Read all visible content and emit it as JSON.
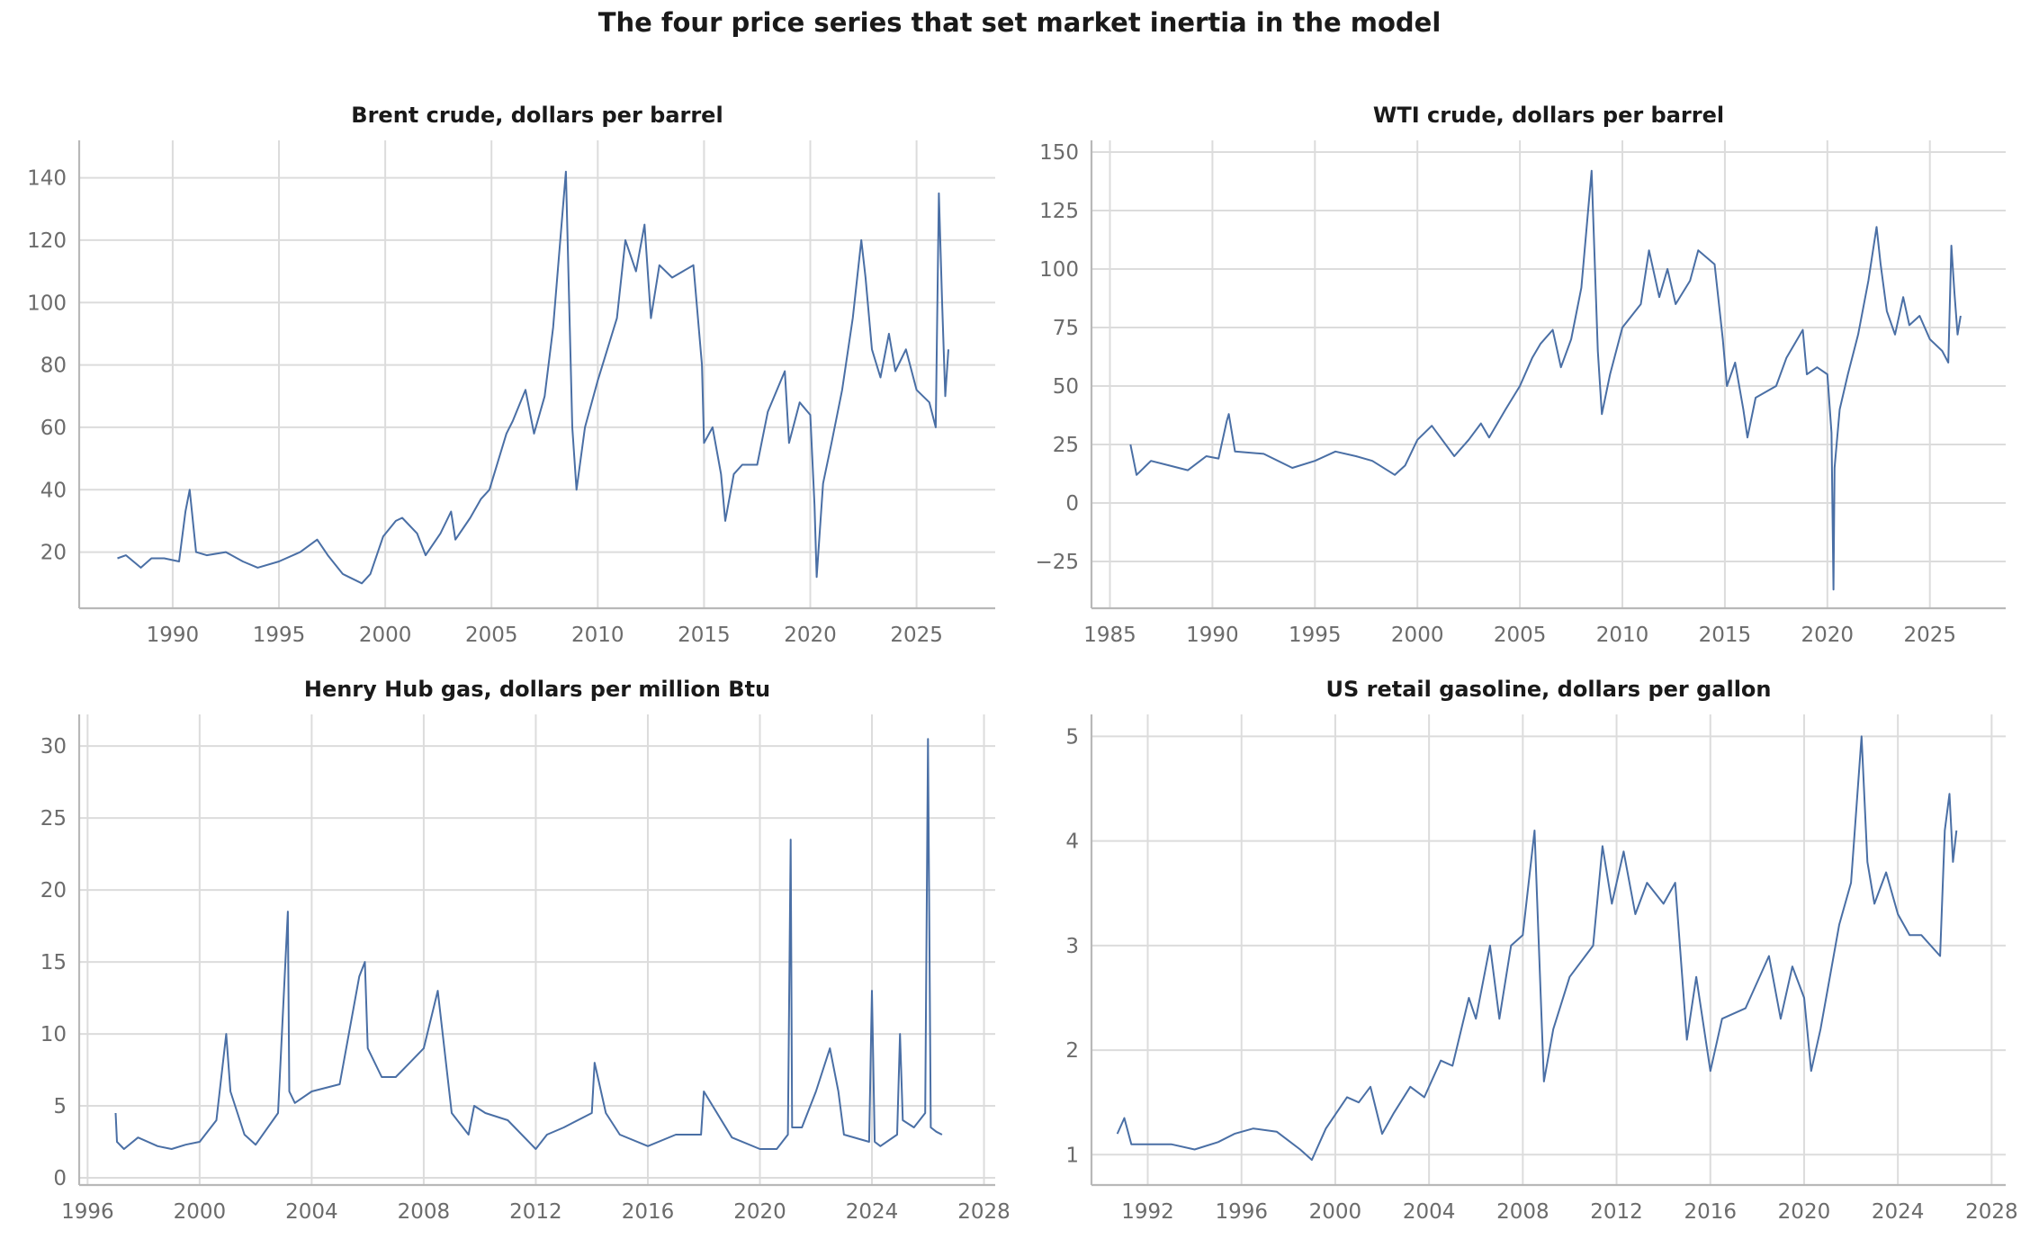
{
  "figure": {
    "suptitle": "The four price series that set market inertia in the model",
    "series_color": "#4a6fa5",
    "grid_color": "#dcdcdc"
  },
  "chart_data": [
    {
      "id": "brent",
      "type": "line",
      "title": "Brent crude, dollars per barrel",
      "xlabel": "",
      "ylabel": "",
      "xlim": [
        1985.6,
        2028.7
      ],
      "ylim": [
        2,
        152
      ],
      "xticks": [
        1990,
        1995,
        2000,
        2005,
        2010,
        2015,
        2020,
        2025
      ],
      "yticks": [
        20,
        40,
        60,
        80,
        100,
        120,
        140
      ],
      "grid": true,
      "x": [
        1987.4,
        1987.8,
        1988.5,
        1989.0,
        1989.6,
        1990.3,
        1990.6,
        1990.8,
        1991.1,
        1991.6,
        1992.5,
        1993.3,
        1994.0,
        1995.0,
        1996.0,
        1996.8,
        1997.3,
        1998.0,
        1998.9,
        1999.3,
        1999.9,
        2000.5,
        2000.8,
        2001.5,
        2001.9,
        2002.6,
        2003.1,
        2003.3,
        2004.0,
        2004.5,
        2004.9,
        2005.7,
        2006.0,
        2006.6,
        2007.0,
        2007.5,
        2007.9,
        2008.5,
        2008.8,
        2009.0,
        2009.4,
        2010.0,
        2010.9,
        2011.3,
        2011.8,
        2012.2,
        2012.5,
        2012.9,
        2013.5,
        2014.0,
        2014.5,
        2014.9,
        2015.0,
        2015.4,
        2015.8,
        2016.0,
        2016.4,
        2016.8,
        2017.5,
        2018.0,
        2018.8,
        2019.0,
        2019.5,
        2020.0,
        2020.2,
        2020.3,
        2020.6,
        2021.0,
        2021.5,
        2022.0,
        2022.4,
        2022.6,
        2022.9,
        2023.3,
        2023.7,
        2024.0,
        2024.5,
        2025.0,
        2025.6,
        2025.9,
        2026.05,
        2026.2,
        2026.35,
        2026.5
      ],
      "values": [
        18,
        19,
        15,
        18,
        18,
        17,
        33,
        40,
        20,
        19,
        20,
        17,
        15,
        17,
        20,
        24,
        19,
        13,
        10,
        13,
        25,
        30,
        31,
        26,
        19,
        26,
        33,
        24,
        31,
        37,
        40,
        58,
        62,
        72,
        58,
        70,
        92,
        142,
        60,
        40,
        60,
        75,
        95,
        120,
        110,
        125,
        95,
        112,
        108,
        110,
        112,
        80,
        55,
        60,
        45,
        30,
        45,
        48,
        48,
        65,
        78,
        55,
        68,
        64,
        35,
        12,
        42,
        55,
        72,
        95,
        120,
        108,
        85,
        76,
        90,
        78,
        85,
        72,
        68,
        60,
        135,
        100,
        70,
        85
      ]
    },
    {
      "id": "wti",
      "type": "line",
      "title": "WTI crude, dollars per barrel",
      "xlabel": "",
      "ylabel": "",
      "xlim": [
        1984.1,
        2028.7
      ],
      "ylim": [
        -45,
        155
      ],
      "xticks": [
        1985,
        1990,
        1995,
        2000,
        2005,
        2010,
        2015,
        2020,
        2025
      ],
      "yticks": [
        -25,
        0,
        25,
        50,
        75,
        100,
        125,
        150
      ],
      "grid": true,
      "x": [
        1986.0,
        1986.3,
        1987.0,
        1987.9,
        1988.8,
        1989.7,
        1990.3,
        1990.7,
        1990.8,
        1991.1,
        1992.5,
        1993.9,
        1995.0,
        1996.0,
        1997.0,
        1997.8,
        1998.9,
        1999.4,
        2000.0,
        2000.7,
        2001.8,
        2002.5,
        2003.1,
        2003.5,
        2004.3,
        2005.0,
        2005.6,
        2006.0,
        2006.6,
        2007.0,
        2007.5,
        2008.0,
        2008.5,
        2008.8,
        2009.0,
        2009.4,
        2010.0,
        2010.9,
        2011.3,
        2011.8,
        2012.2,
        2012.6,
        2013.3,
        2013.7,
        2014.5,
        2014.9,
        2015.1,
        2015.5,
        2015.9,
        2016.1,
        2016.5,
        2017.5,
        2018.0,
        2018.8,
        2019.0,
        2019.5,
        2020.0,
        2020.2,
        2020.3,
        2020.35,
        2020.6,
        2021.0,
        2021.5,
        2022.0,
        2022.4,
        2022.6,
        2022.9,
        2023.3,
        2023.7,
        2024.0,
        2024.5,
        2025.0,
        2025.6,
        2025.9,
        2026.05,
        2026.2,
        2026.35,
        2026.5
      ],
      "values": [
        25,
        12,
        18,
        16,
        14,
        20,
        19,
        35,
        38,
        22,
        21,
        15,
        18,
        22,
        20,
        18,
        12,
        16,
        27,
        33,
        20,
        27,
        34,
        28,
        40,
        50,
        62,
        68,
        74,
        58,
        70,
        92,
        142,
        65,
        38,
        55,
        75,
        85,
        108,
        88,
        100,
        85,
        95,
        108,
        102,
        70,
        50,
        60,
        40,
        28,
        45,
        50,
        62,
        74,
        55,
        58,
        55,
        30,
        -37,
        15,
        40,
        55,
        72,
        95,
        118,
        102,
        82,
        72,
        88,
        76,
        80,
        70,
        65,
        60,
        110,
        90,
        72,
        80
      ]
    },
    {
      "id": "henry_hub",
      "type": "line",
      "title": "Henry Hub gas, dollars per million Btu",
      "xlabel": "",
      "ylabel": "",
      "xlim": [
        1995.7,
        2028.4
      ],
      "ylim": [
        -0.5,
        32.2
      ],
      "xticks": [
        1996,
        2000,
        2004,
        2008,
        2012,
        2016,
        2020,
        2024,
        2028
      ],
      "yticks": [
        0,
        5,
        10,
        15,
        20,
        25,
        30
      ],
      "grid": true,
      "x": [
        1997.0,
        1997.05,
        1997.3,
        1997.8,
        1998.5,
        1999.0,
        1999.5,
        2000.0,
        2000.6,
        2000.95,
        2001.1,
        2001.6,
        2002.0,
        2002.8,
        2003.15,
        2003.2,
        2003.4,
        2004.0,
        2005.0,
        2005.7,
        2005.9,
        2006.0,
        2006.5,
        2007.0,
        2007.5,
        2008.0,
        2008.5,
        2009.0,
        2009.6,
        2009.8,
        2010.2,
        2011.0,
        2012.0,
        2012.4,
        2013.0,
        2014.0,
        2014.1,
        2014.5,
        2015.0,
        2016.0,
        2017.0,
        2017.9,
        2018.0,
        2019.0,
        2020.0,
        2020.6,
        2021.0,
        2021.1,
        2021.15,
        2021.5,
        2022.0,
        2022.5,
        2022.8,
        2023.0,
        2023.9,
        2024.0,
        2024.1,
        2024.3,
        2024.9,
        2025.0,
        2025.1,
        2025.5,
        2025.9,
        2026.0,
        2026.1,
        2026.3,
        2026.5
      ],
      "values": [
        4.5,
        2.5,
        2.0,
        2.8,
        2.2,
        2.0,
        2.3,
        2.5,
        4.0,
        10.0,
        6.0,
        3.0,
        2.3,
        4.5,
        18.5,
        6.0,
        5.2,
        6.0,
        6.5,
        14.0,
        15.0,
        9.0,
        7.0,
        7.0,
        8.0,
        9.0,
        13.0,
        4.5,
        3.0,
        5.0,
        4.5,
        4.0,
        2.0,
        3.0,
        3.5,
        4.5,
        8.0,
        4.5,
        3.0,
        2.2,
        3.0,
        3.0,
        6.0,
        2.8,
        2.0,
        2.0,
        3.0,
        23.5,
        3.5,
        3.5,
        6.0,
        9.0,
        6.0,
        3.0,
        2.5,
        13.0,
        2.5,
        2.2,
        3.0,
        10.0,
        4.0,
        3.5,
        4.5,
        30.5,
        3.5,
        3.2,
        3.0
      ]
    },
    {
      "id": "gasoline",
      "type": "line",
      "title": "US retail gasoline, dollars per gallon",
      "xlabel": "",
      "ylabel": "",
      "xlim": [
        1989.6,
        2028.6
      ],
      "ylim": [
        0.71,
        5.21
      ],
      "xticks": [
        1992,
        1996,
        2000,
        2004,
        2008,
        2012,
        2016,
        2020,
        2024,
        2028
      ],
      "yticks": [
        1,
        2,
        3,
        4,
        5
      ],
      "grid": true,
      "x": [
        1990.7,
        1991.0,
        1991.3,
        1992.0,
        1993.0,
        1994.0,
        1995.0,
        1995.7,
        1996.5,
        1997.5,
        1998.5,
        1999.0,
        1999.6,
        2000.5,
        2001.0,
        2001.5,
        2002.0,
        2002.5,
        2003.2,
        2003.8,
        2004.5,
        2005.0,
        2005.7,
        2006.0,
        2006.6,
        2007.0,
        2007.5,
        2008.0,
        2008.5,
        2008.9,
        2009.3,
        2010.0,
        2011.0,
        2011.4,
        2011.8,
        2012.3,
        2012.8,
        2013.3,
        2014.0,
        2014.5,
        2015.0,
        2015.4,
        2016.0,
        2016.5,
        2017.5,
        2018.5,
        2019.0,
        2019.5,
        2020.0,
        2020.3,
        2020.7,
        2021.5,
        2022.0,
        2022.45,
        2022.7,
        2023.0,
        2023.5,
        2024.0,
        2024.5,
        2025.0,
        2025.8,
        2026.0,
        2026.2,
        2026.35,
        2026.5
      ],
      "values": [
        1.2,
        1.35,
        1.1,
        1.1,
        1.1,
        1.05,
        1.12,
        1.2,
        1.25,
        1.22,
        1.05,
        0.95,
        1.25,
        1.55,
        1.5,
        1.65,
        1.2,
        1.4,
        1.65,
        1.55,
        1.9,
        1.85,
        2.5,
        2.3,
        3.0,
        2.3,
        3.0,
        3.1,
        4.1,
        1.7,
        2.2,
        2.7,
        3.0,
        3.95,
        3.4,
        3.9,
        3.3,
        3.6,
        3.4,
        3.6,
        2.1,
        2.7,
        1.8,
        2.3,
        2.4,
        2.9,
        2.3,
        2.8,
        2.5,
        1.8,
        2.2,
        3.2,
        3.6,
        5.0,
        3.8,
        3.4,
        3.7,
        3.3,
        3.1,
        3.1,
        2.9,
        4.1,
        4.45,
        3.8,
        4.1
      ]
    }
  ]
}
